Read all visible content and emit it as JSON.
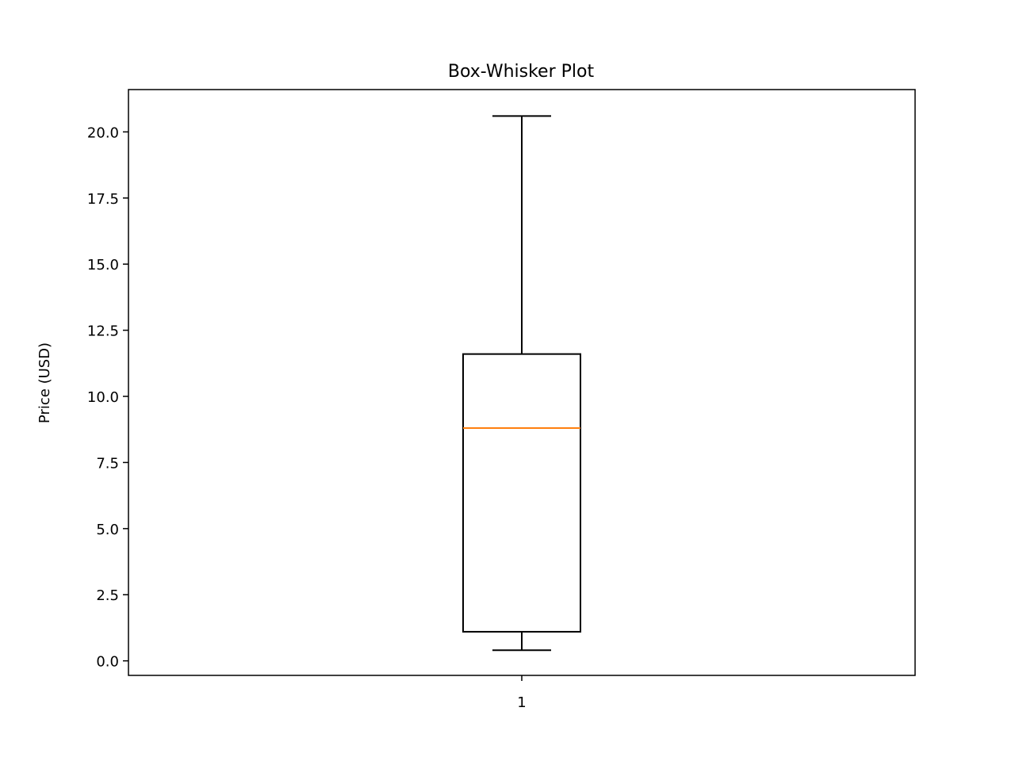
{
  "chart_data": {
    "type": "box",
    "title": "Box-Whisker Plot",
    "xlabel": "",
    "ylabel": "Price (USD)",
    "categories": [
      "1"
    ],
    "ylim": [
      -0.55,
      21.6
    ],
    "yticks": [
      0.0,
      2.5,
      5.0,
      7.5,
      10.0,
      12.5,
      15.0,
      17.5,
      20.0
    ],
    "ytick_labels": [
      "0.0",
      "2.5",
      "5.0",
      "7.5",
      "10.0",
      "12.5",
      "15.0",
      "17.5",
      "20.0"
    ],
    "boxes": [
      {
        "label": "1",
        "whisker_low": 0.4,
        "q1": 1.1,
        "median": 8.8,
        "q3": 11.6,
        "whisker_high": 20.6
      }
    ],
    "colors": {
      "box": "#000000",
      "median": "#ff7f0e",
      "axes": "#000000",
      "background": "#ffffff"
    },
    "grid": false,
    "legend": "none"
  }
}
